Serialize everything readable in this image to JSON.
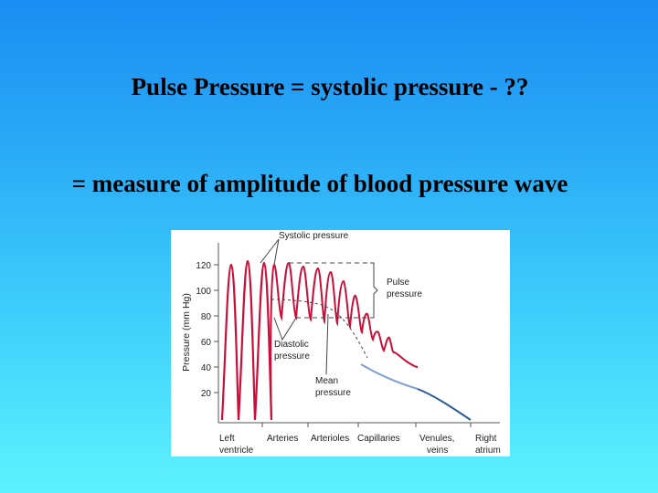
{
  "slide": {
    "line1": "Pulse Pressure = systolic pressure - ??",
    "line2": "= measure of amplitude of blood pressure wave"
  },
  "figure": {
    "y_axis_label": "Pressure (mm Hg)",
    "y_ticks": [
      "120",
      "100",
      "80",
      "60",
      "40",
      "20"
    ],
    "x_labels": [
      {
        "line1": "Left",
        "line2": "ventricle"
      },
      {
        "line1": "Arteries",
        "line2": ""
      },
      {
        "line1": "Arterioles",
        "line2": ""
      },
      {
        "line1": "Capillaries",
        "line2": ""
      },
      {
        "line1": "Venules,",
        "line2": "veins"
      },
      {
        "line1": "Right",
        "line2": "atrium"
      }
    ],
    "annotations": {
      "systolic": "Systolic pressure",
      "pulse_line1": "Pulse",
      "pulse_line2": "pressure",
      "diastolic_line1": "Diastolic",
      "diastolic_line2": "pressure",
      "mean_line1": "Mean",
      "mean_line2": "pressure"
    },
    "colors": {
      "pressure_wave": "#c8103a",
      "capillary_segment": "#7f9fd0",
      "venous_segment": "#2a5a9a"
    }
  }
}
